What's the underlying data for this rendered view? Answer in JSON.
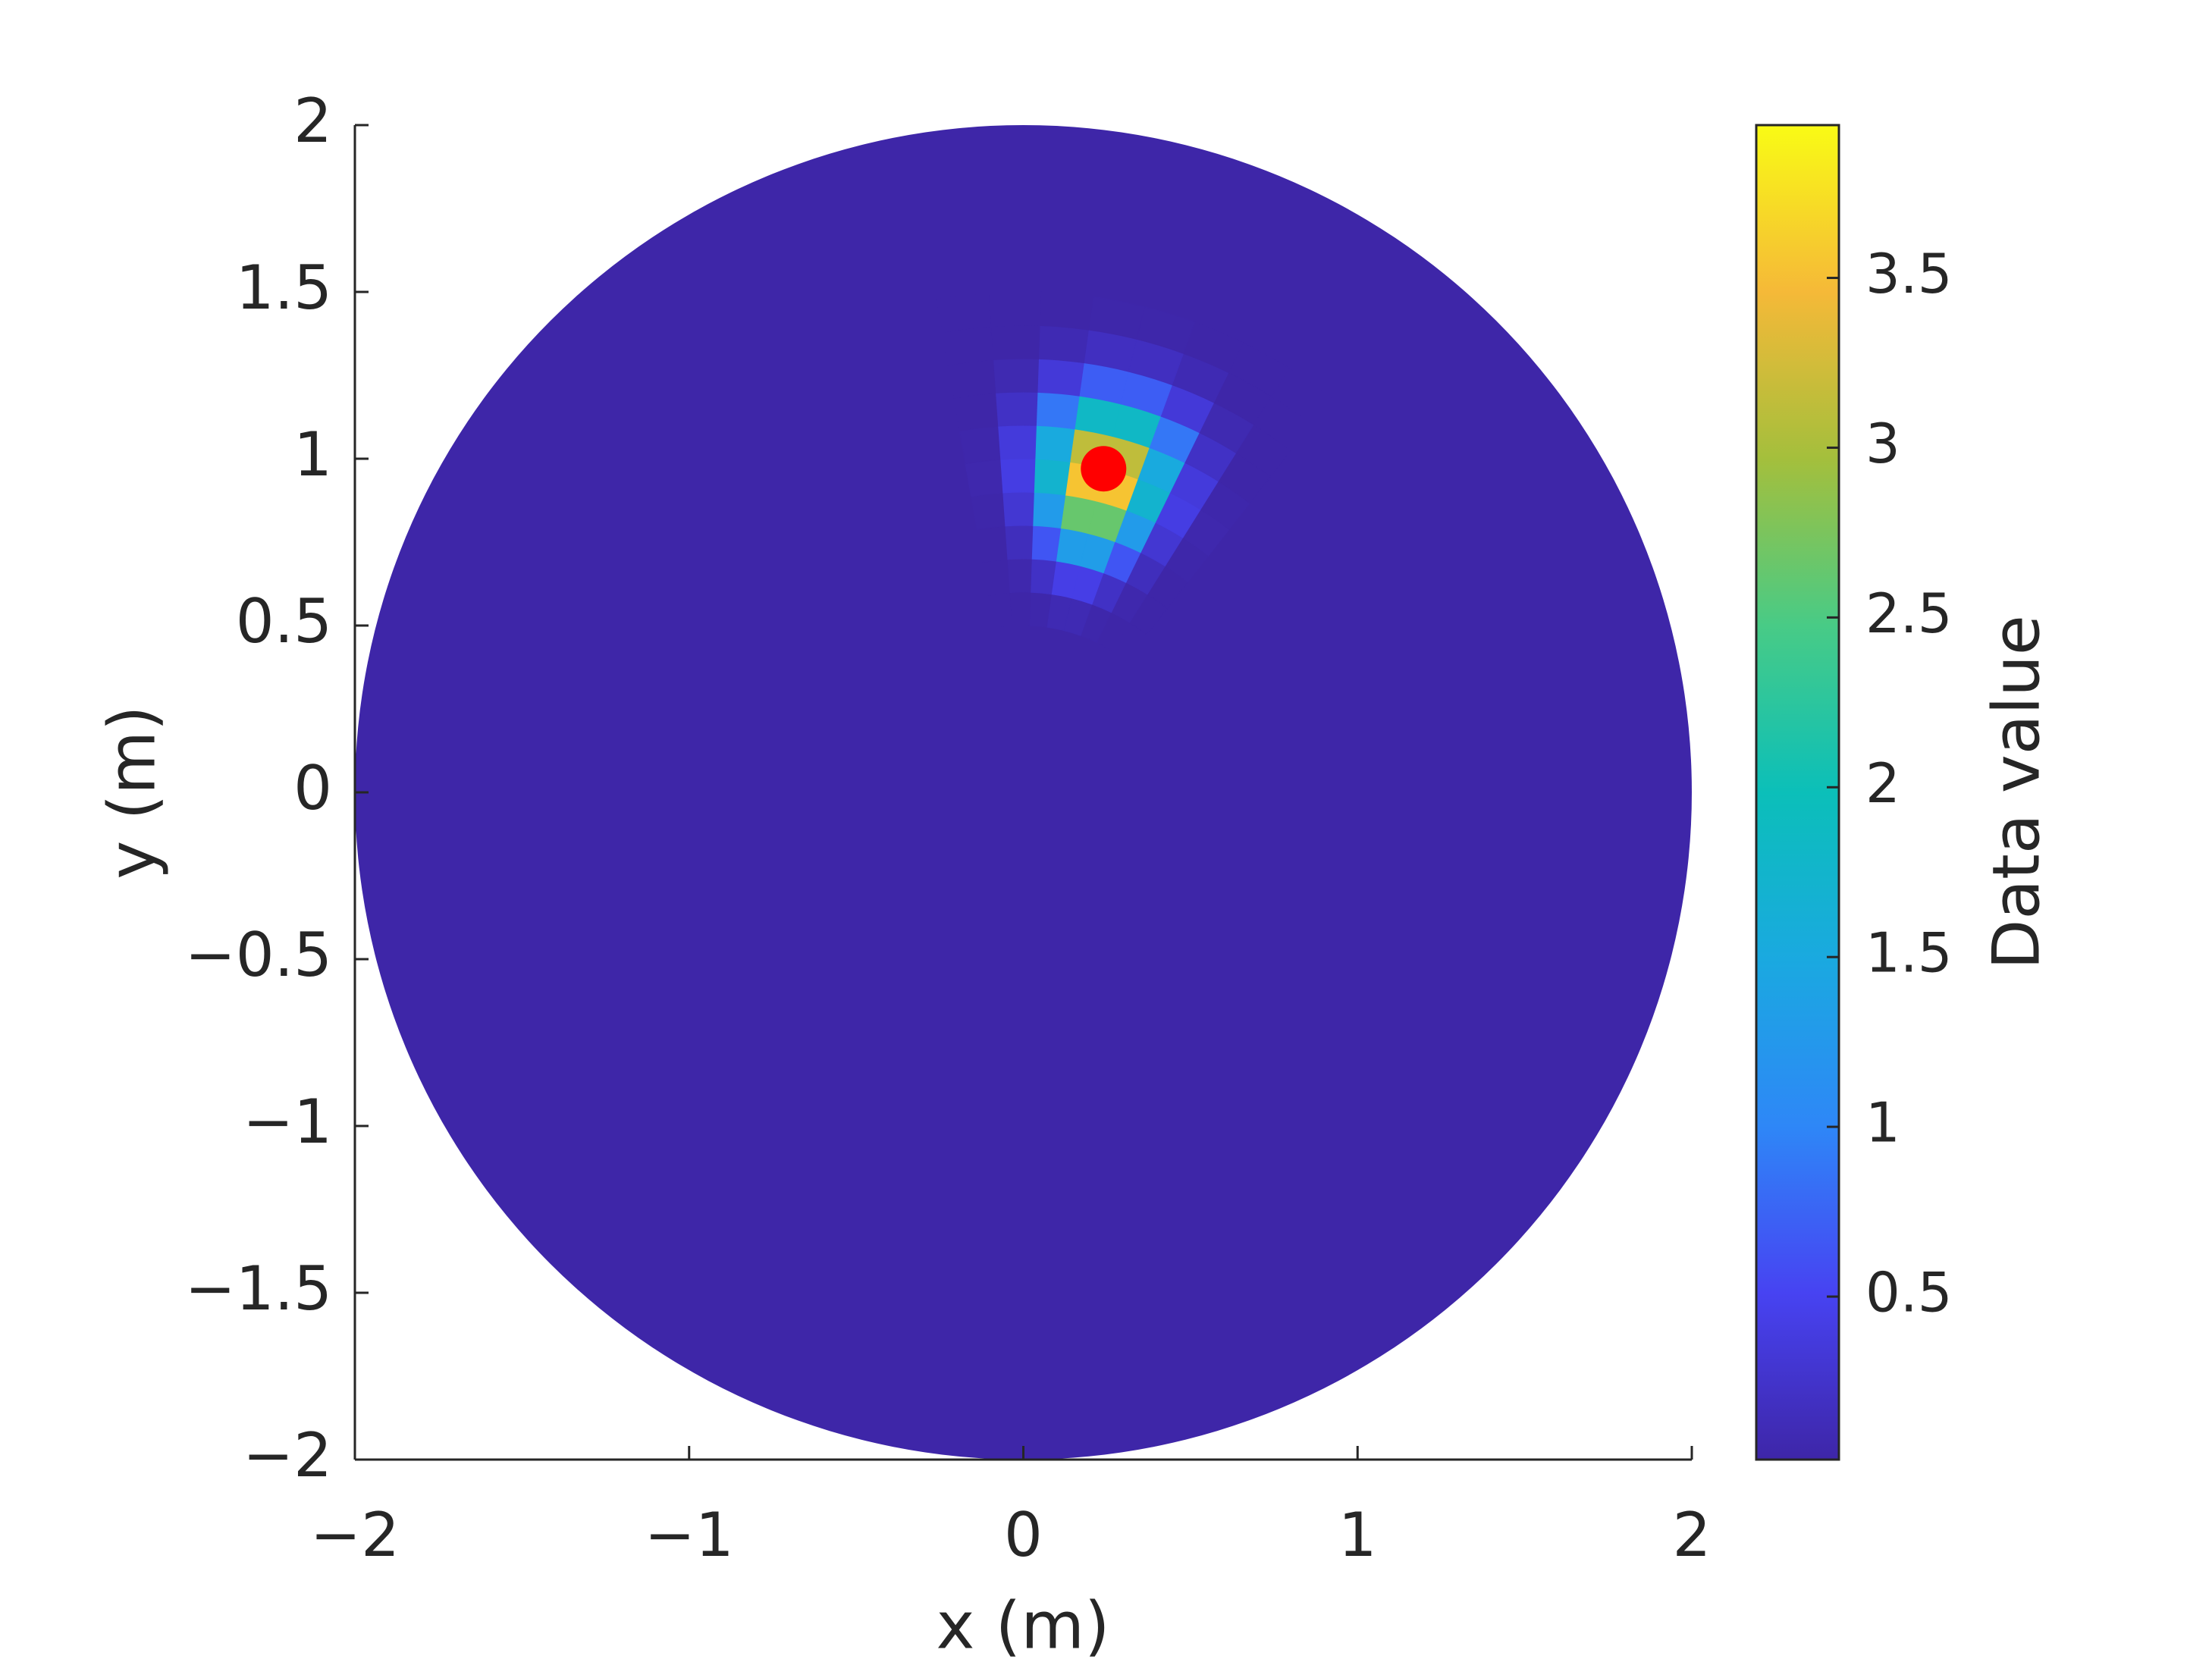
{
  "chart_data": {
    "type": "polar_heatmap",
    "xlabel": "x (m)",
    "ylabel": "y (m)",
    "xlim": [
      -2,
      2
    ],
    "ylim": [
      -2,
      2
    ],
    "xticks": [
      {
        "value": -2,
        "label": "−2"
      },
      {
        "value": -1,
        "label": "−1"
      },
      0,
      1,
      2
    ],
    "yticks": [
      {
        "value": -2,
        "label": "−2"
      },
      {
        "value": -1.5,
        "label": "−1.5"
      },
      {
        "value": -1,
        "label": "−1"
      },
      {
        "value": -0.5,
        "label": "−0.5"
      },
      0,
      0.5,
      1,
      1.5,
      2
    ],
    "radius": 2,
    "background_value": 0.02,
    "r_edges": [
      0.5,
      0.6,
      0.7,
      0.8,
      0.9,
      1.0,
      1.1,
      1.2,
      1.3,
      1.4,
      1.5
    ],
    "theta_edges": [
      52,
      58,
      64,
      70,
      76,
      82,
      88,
      94,
      100
    ],
    "values": [
      [
        0.02,
        0.02,
        0.04,
        0.09,
        0.09,
        0.04,
        0.02,
        0.02
      ],
      [
        0.02,
        0.05,
        0.21,
        0.43,
        0.43,
        0.21,
        0.05,
        0.02
      ],
      [
        0.02,
        0.15,
        0.64,
        1.32,
        1.32,
        0.64,
        0.15,
        0.02
      ],
      [
        0.03,
        0.3,
        1.29,
        2.64,
        2.64,
        1.29,
        0.3,
        0.03
      ],
      [
        0.05,
        0.41,
        1.72,
        3.54,
        3.54,
        1.72,
        0.41,
        0.05
      ],
      [
        0.04,
        0.36,
        1.52,
        3.13,
        3.13,
        1.52,
        0.36,
        0.04
      ],
      [
        0.02,
        0.21,
        0.89,
        1.83,
        1.83,
        0.89,
        0.21,
        0.02
      ],
      [
        0.02,
        0.08,
        0.34,
        0.7,
        0.7,
        0.34,
        0.08,
        0.02
      ],
      [
        0.02,
        0.02,
        0.09,
        0.18,
        0.18,
        0.09,
        0.02,
        0.02
      ],
      [
        0.02,
        0.02,
        0.02,
        0.03,
        0.03,
        0.02,
        0.02,
        0.02
      ]
    ],
    "marker": {
      "x": 0.24,
      "y": 0.97,
      "color": "#ff0000"
    },
    "colormap": [
      "#3e26a8",
      "#4743f2",
      "#2e87f7",
      "#1aa9e0",
      "#0bbfb9",
      "#48cb86",
      "#a4bf3c",
      "#f5b938",
      "#f9fb15"
    ],
    "colorbar": {
      "label": "Data value",
      "lim": [
        0.02,
        3.95
      ],
      "ticks": [
        0.5,
        1,
        1.5,
        2,
        2.5,
        3,
        3.5
      ]
    }
  }
}
